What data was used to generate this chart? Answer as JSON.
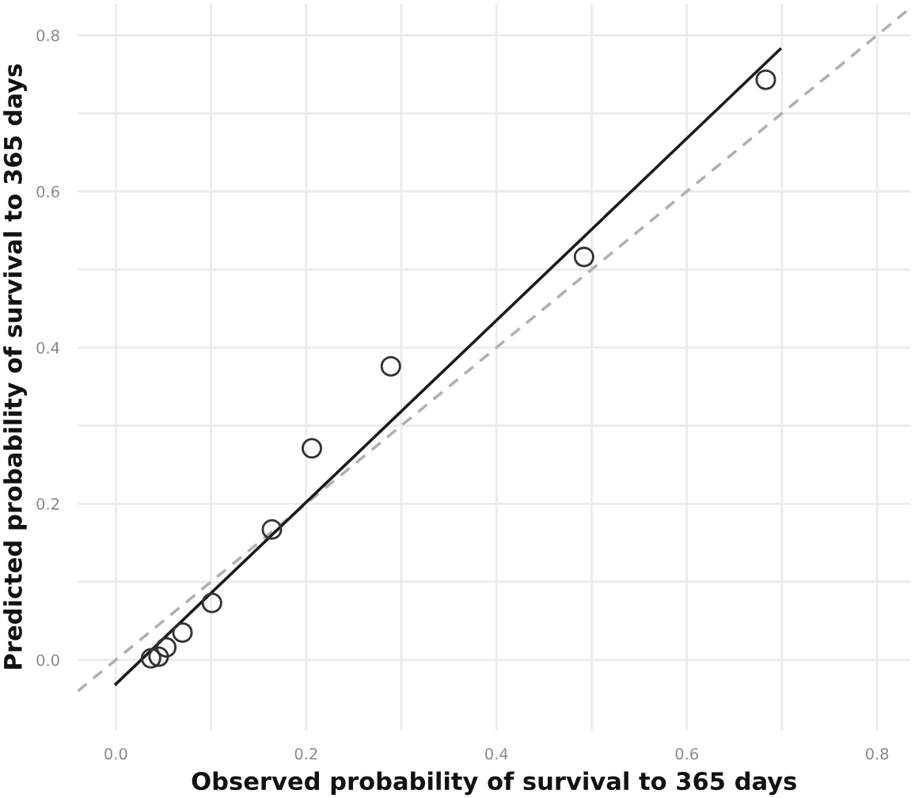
{
  "chart_data": {
    "type": "scatter",
    "xlabel": "Observed probability of survival to 365 days",
    "ylabel": "Predicted probability of survival to 365 days",
    "xlim": [
      -0.04,
      0.835
    ],
    "ylim": [
      -0.09,
      0.84
    ],
    "xticks": [
      {
        "value": 0,
        "label": "0.0"
      },
      {
        "value": 0.1,
        "label": null
      },
      0.2,
      {
        "value": 0.3,
        "label": null
      },
      0.4,
      {
        "value": 0.5,
        "label": null
      },
      0.6,
      {
        "value": 0.7,
        "label": null
      },
      0.8
    ],
    "yticks": [
      {
        "value": 0,
        "label": "0.0"
      },
      {
        "value": 0.1,
        "label": null
      },
      0.2,
      {
        "value": 0.3,
        "label": null
      },
      0.4,
      {
        "value": 0.5,
        "label": null
      },
      0.6,
      {
        "value": 0.7,
        "label": null
      },
      0.8
    ],
    "grid": true,
    "marker": "circle",
    "series": [
      {
        "type": "line",
        "color": "#b0b0b0",
        "line_style": "dashed",
        "marker": "none",
        "x": [
          -0.04,
          0.835
        ],
        "values": [
          -0.04,
          0.835
        ]
      },
      {
        "type": "line",
        "color": "#1a1a1a",
        "line_style": "solid",
        "marker": "none",
        "x": [
          0.0,
          0.698
        ],
        "values": [
          -0.031,
          0.782
        ]
      },
      {
        "color": "#333333",
        "x": [
          0.037,
          0.045,
          0.053,
          0.07,
          0.101,
          0.164,
          0.206,
          0.289,
          0.492,
          0.683
        ],
        "values": [
          0.002,
          0.004,
          0.016,
          0.035,
          0.073,
          0.167,
          0.271,
          0.376,
          0.516,
          0.743
        ]
      }
    ]
  }
}
